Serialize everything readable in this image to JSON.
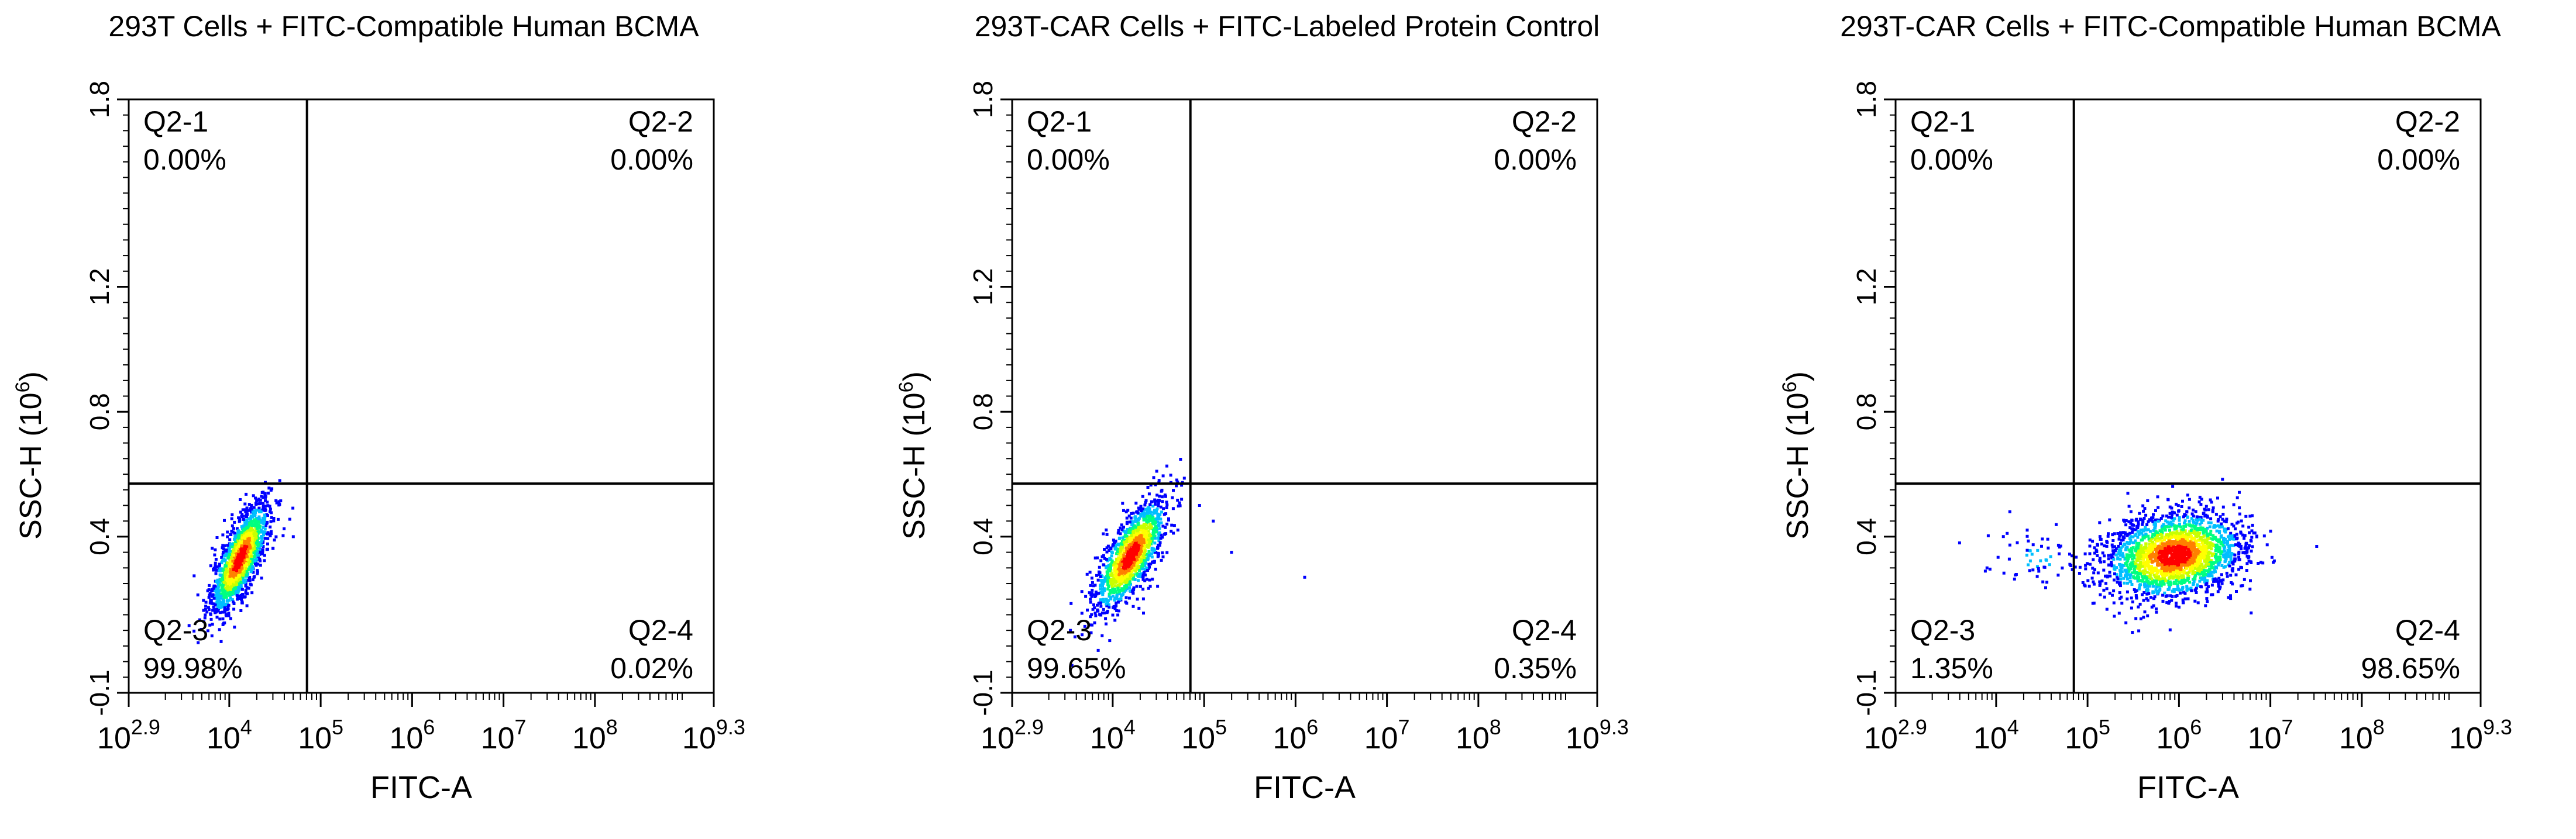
{
  "chart_data": [
    {
      "type": "scatter",
      "subtype": "flow-cytometry-density-plot",
      "title": "293T Cells + FITC-Compatible Human BCMA",
      "xlabel": "FITC-A",
      "ylabel_main": "SSC-H (10",
      "ylabel_exp": "6",
      "ylabel_close": ")",
      "x_scale": "log10",
      "xlim_log10": [
        2.9,
        9.3
      ],
      "ylim": [
        -0.1,
        1.8
      ],
      "x_ticks": [
        {
          "base": "10",
          "exp": "2.9",
          "log10": 2.9
        },
        {
          "base": "10",
          "exp": "4",
          "log10": 4
        },
        {
          "base": "10",
          "exp": "5",
          "log10": 5
        },
        {
          "base": "10",
          "exp": "6",
          "log10": 6
        },
        {
          "base": "10",
          "exp": "7",
          "log10": 7
        },
        {
          "base": "10",
          "exp": "8",
          "log10": 8
        },
        {
          "base": "10",
          "exp": "9.3",
          "log10": 9.3
        }
      ],
      "y_ticks": [
        {
          "label": "-0.1",
          "value": -0.1
        },
        {
          "label": "0.4",
          "value": 0.4
        },
        {
          "label": "0.8",
          "value": 0.8
        },
        {
          "label": "1.2",
          "value": 1.2
        },
        {
          "label": "1.8",
          "value": 1.8
        }
      ],
      "gate": {
        "x_log10": 4.85,
        "y": 0.57
      },
      "quadrants": [
        {
          "name": "Q2-1",
          "percent": "0.00%",
          "corner": "top-left"
        },
        {
          "name": "Q2-2",
          "percent": "0.00%",
          "corner": "top-right"
        },
        {
          "name": "Q2-3",
          "percent": "99.98%",
          "corner": "bottom-left"
        },
        {
          "name": "Q2-4",
          "percent": "0.02%",
          "corner": "bottom-right"
        }
      ],
      "populations": [
        {
          "cx_log10": 4.12,
          "cy": 0.33,
          "sx": 0.16,
          "sy": 0.09,
          "rho": 0.75,
          "n": 1500
        }
      ],
      "outliers": [
        [
          4.7,
          0.4
        ]
      ]
    },
    {
      "type": "scatter",
      "subtype": "flow-cytometry-density-plot",
      "title": "293T-CAR Cells + FITC-Labeled Protein Control",
      "xlabel": "FITC-A",
      "ylabel_main": "SSC-H (10",
      "ylabel_exp": "6",
      "ylabel_close": ")",
      "x_scale": "log10",
      "xlim_log10": [
        2.9,
        9.3
      ],
      "ylim": [
        -0.1,
        1.8
      ],
      "x_ticks": [
        {
          "base": "10",
          "exp": "2.9",
          "log10": 2.9
        },
        {
          "base": "10",
          "exp": "4",
          "log10": 4
        },
        {
          "base": "10",
          "exp": "5",
          "log10": 5
        },
        {
          "base": "10",
          "exp": "6",
          "log10": 6
        },
        {
          "base": "10",
          "exp": "7",
          "log10": 7
        },
        {
          "base": "10",
          "exp": "8",
          "log10": 8
        },
        {
          "base": "10",
          "exp": "9.3",
          "log10": 9.3
        }
      ],
      "y_ticks": [
        {
          "label": "-0.1",
          "value": -0.1
        },
        {
          "label": "0.4",
          "value": 0.4
        },
        {
          "label": "0.8",
          "value": 0.8
        },
        {
          "label": "1.2",
          "value": 1.2
        },
        {
          "label": "1.8",
          "value": 1.8
        }
      ],
      "gate": {
        "x_log10": 4.85,
        "y": 0.57
      },
      "quadrants": [
        {
          "name": "Q2-1",
          "percent": "0.00%",
          "corner": "top-left"
        },
        {
          "name": "Q2-2",
          "percent": "0.00%",
          "corner": "top-right"
        },
        {
          "name": "Q2-3",
          "percent": "99.65%",
          "corner": "bottom-left"
        },
        {
          "name": "Q2-4",
          "percent": "0.35%",
          "corner": "bottom-right"
        }
      ],
      "populations": [
        {
          "cx_log10": 4.2,
          "cy": 0.34,
          "sx": 0.2,
          "sy": 0.09,
          "rho": 0.72,
          "n": 1300
        }
      ],
      "outliers": [
        [
          5.3,
          0.35
        ],
        [
          6.1,
          0.27
        ],
        [
          5.1,
          0.45
        ],
        [
          4.95,
          0.5
        ]
      ]
    },
    {
      "type": "scatter",
      "subtype": "flow-cytometry-density-plot",
      "title": "293T-CAR Cells + FITC-Compatible Human BCMA",
      "xlabel": "FITC-A",
      "ylabel_main": "SSC-H (10",
      "ylabel_exp": "6",
      "ylabel_close": ")",
      "x_scale": "log10",
      "xlim_log10": [
        2.9,
        9.3
      ],
      "ylim": [
        -0.1,
        1.8
      ],
      "x_ticks": [
        {
          "base": "10",
          "exp": "2.9",
          "log10": 2.9
        },
        {
          "base": "10",
          "exp": "4",
          "log10": 4
        },
        {
          "base": "10",
          "exp": "5",
          "log10": 5
        },
        {
          "base": "10",
          "exp": "6",
          "log10": 6
        },
        {
          "base": "10",
          "exp": "7",
          "log10": 7
        },
        {
          "base": "10",
          "exp": "8",
          "log10": 8
        },
        {
          "base": "10",
          "exp": "9.3",
          "log10": 9.3
        }
      ],
      "y_ticks": [
        {
          "label": "-0.1",
          "value": -0.1
        },
        {
          "label": "0.4",
          "value": 0.4
        },
        {
          "label": "0.8",
          "value": 0.8
        },
        {
          "label": "1.2",
          "value": 1.2
        },
        {
          "label": "1.8",
          "value": 1.8
        }
      ],
      "gate": {
        "x_log10": 4.85,
        "y": 0.57
      },
      "quadrants": [
        {
          "name": "Q2-1",
          "percent": "0.00%",
          "corner": "top-left"
        },
        {
          "name": "Q2-2",
          "percent": "0.00%",
          "corner": "top-right"
        },
        {
          "name": "Q2-3",
          "percent": "1.35%",
          "corner": "bottom-left"
        },
        {
          "name": "Q2-4",
          "percent": "98.65%",
          "corner": "bottom-right"
        }
      ],
      "populations": [
        {
          "cx_log10": 5.95,
          "cy": 0.34,
          "sx": 0.38,
          "sy": 0.07,
          "rho": 0.2,
          "n": 2200
        },
        {
          "cx_log10": 4.45,
          "cy": 0.33,
          "sx": 0.3,
          "sy": 0.04,
          "rho": 0.0,
          "n": 60
        }
      ],
      "outliers": [
        [
          3.6,
          0.38
        ],
        [
          4.15,
          0.48
        ],
        [
          3.9,
          0.3
        ]
      ]
    }
  ],
  "colormap": [
    "#0000ff",
    "#00bfff",
    "#00ff80",
    "#c8ff00",
    "#ffff00",
    "#ff8000",
    "#ff0000"
  ],
  "axis_color": "#000000"
}
